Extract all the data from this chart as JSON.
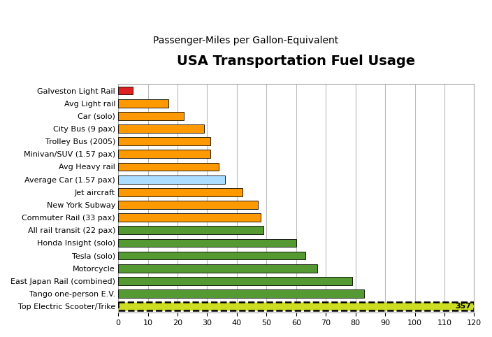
{
  "title": "USA Transportation Fuel Usage",
  "subtitle": "Passenger-Miles per Gallon-Equivalent",
  "categories": [
    "Galveston Light Rail",
    "Avg Light rail",
    "Car (solo)",
    "City Bus (9 pax)",
    "Trolley Bus (2005)",
    "Minivan/SUV (1.57 pax)",
    "Avg Heavy rail",
    "Average Car (1.57 pax)",
    "Jet aircraft",
    "New York Subway",
    "Commuter Rail (33 pax)",
    "All rail transit (22 pax)",
    "Honda Insight (solo)",
    "Tesla (solo)",
    "Motorcycle",
    "East Japan Rail (combined)",
    "Tango one-person E.V.",
    "Top Electric Scooter/Trike"
  ],
  "values": [
    5,
    17,
    22,
    29,
    31,
    31,
    34,
    36,
    42,
    47,
    48,
    49,
    60,
    63,
    67,
    79,
    83,
    120
  ],
  "true_value_last": "357",
  "colors": [
    "#dd2222",
    "#ff9900",
    "#ff9900",
    "#ff9900",
    "#ff9900",
    "#ff9900",
    "#ff9900",
    "#aaddff",
    "#ff9900",
    "#ff9900",
    "#ff9900",
    "#559933",
    "#559933",
    "#559933",
    "#559933",
    "#559933",
    "#559933",
    "#ccdd22"
  ],
  "xlim": [
    0,
    120
  ],
  "xticks": [
    0,
    10,
    20,
    30,
    40,
    50,
    60,
    70,
    80,
    90,
    100,
    110,
    120
  ],
  "bar_height": 0.65,
  "background_color": "#ffffff",
  "grid_color": "#bbbbbb",
  "title_fontsize": 14,
  "subtitle_fontsize": 10,
  "tick_fontsize": 8,
  "label_fontsize": 8
}
